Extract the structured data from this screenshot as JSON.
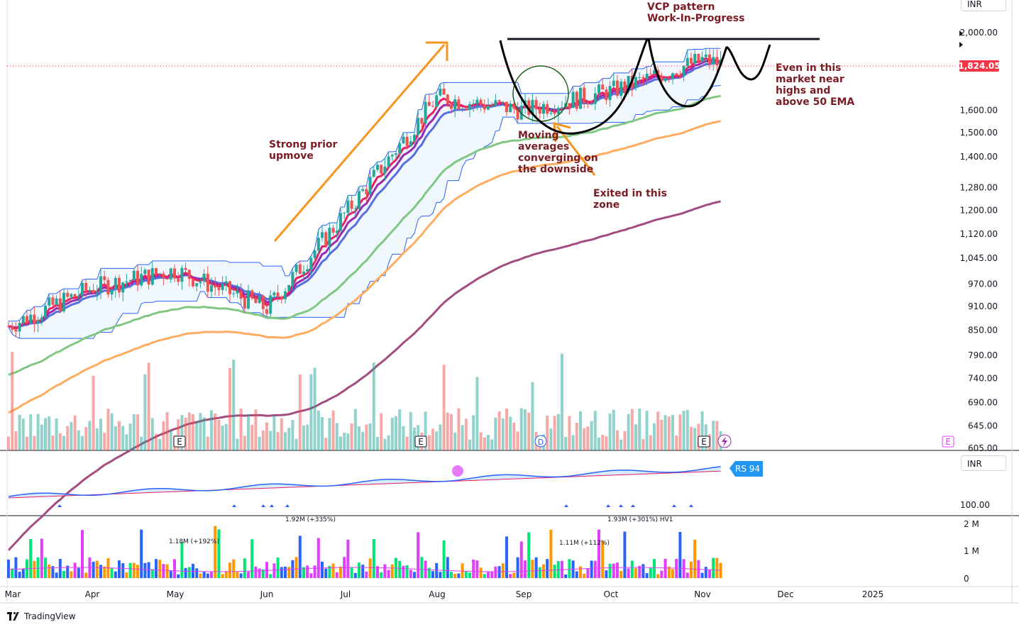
{
  "window": {
    "currency": "INR",
    "brand": "TradingView"
  },
  "price_axis": {
    "ticks": [
      "2,000.00",
      "1,600.00",
      "1,500.00",
      "1,400.00",
      "1,280.00",
      "1,200.00",
      "1,120.00",
      "1,045.00",
      "970.00",
      "910.00",
      "850.00",
      "790.00",
      "740.00",
      "690.00",
      "645.00",
      "605.00"
    ],
    "last_price": "1,824.05",
    "last_price_color": "#f23645"
  },
  "rs_panel": {
    "label": "RS 94",
    "axis_tick": "100.00",
    "line_color": "#2962ff",
    "ma_color": "#e91e63",
    "label_bg": "#2196f3"
  },
  "volume_panel": {
    "axis_ticks": [
      "2 M",
      "1 M",
      "0"
    ],
    "labels": [
      "1.18M (+192%)",
      "1.92M (+335%)",
      "1.11M (+112%)",
      "1.93M (+301%) HV1"
    ]
  },
  "time_axis": [
    "Mar",
    "Apr",
    "May",
    "Jun",
    "Jul",
    "Aug",
    "Sep",
    "Oct",
    "Nov",
    "Dec",
    "2025"
  ],
  "markers": {
    "earnings": "E",
    "dividend": "D"
  },
  "annotations": {
    "vcp": [
      "VCP pattern",
      "Work-In-Progress"
    ],
    "prior_upmove": [
      "Strong prior",
      "upmove"
    ],
    "moving_avgs": [
      "Moving",
      "averages",
      "converging on",
      "the downside"
    ],
    "exited": [
      "Exited in this",
      "zone"
    ],
    "market_note": [
      "Even in this",
      "market near",
      "highs and",
      "above 50 EMA"
    ]
  },
  "colors": {
    "up": "#26a69a",
    "down": "#ef5350",
    "ema_short1": "#e91e63",
    "ema_short2": "#9c27b0",
    "ema_short3": "#5b6ee1",
    "ema_50": "#81c784",
    "ema_100": "#ffab60",
    "ema_200": "#a24c7f",
    "annotation_text": "#7b1c25",
    "arrow": "#f7941d"
  },
  "chart_data": {
    "type": "line",
    "title": "",
    "scale": "log",
    "ylim": [
      605,
      2080
    ],
    "x": [
      "Mar",
      "Apr",
      "May",
      "Jun",
      "Jul",
      "Aug",
      "Sep",
      "Oct",
      "Nov"
    ],
    "series": [
      {
        "values": [
          880,
          955,
          1010,
          900,
          1180,
          1620,
          1580,
          1700,
          1824.05
        ]
      }
    ],
    "resistance": 1960,
    "last_price": 1824.05
  }
}
